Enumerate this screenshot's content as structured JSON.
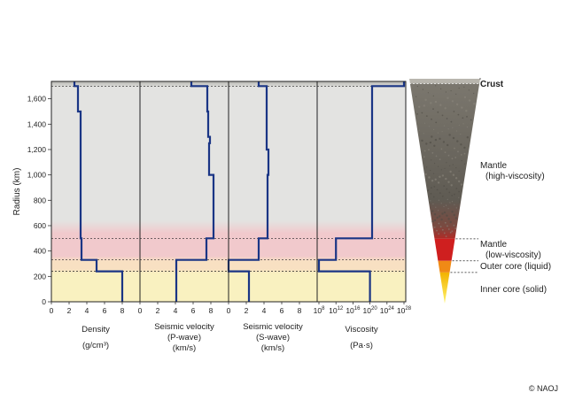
{
  "y_axis": {
    "label": "Radius (km)",
    "ticks": [
      "0",
      "200",
      "400",
      "600",
      "800",
      "1,000",
      "1,200",
      "1,400",
      "1,600"
    ]
  },
  "layers": [
    {
      "name": "crust",
      "label_lines": [
        "Crust"
      ],
      "r_bottom": 1700,
      "r_top": 1737,
      "color": "#b5b5b0"
    },
    {
      "name": "mantle-high",
      "label_lines": [
        "Mantle",
        "(high-viscosity)"
      ],
      "r_bottom": 500,
      "r_top": 1700,
      "color": "#e3e3e1"
    },
    {
      "name": "mantle-low",
      "label_lines": [
        "Mantle",
        "(low-viscosity)"
      ],
      "r_bottom": 330,
      "r_top": 500,
      "color": "#f1c9cc"
    },
    {
      "name": "outer-core",
      "label_lines": [
        "Outer core (liquid)"
      ],
      "r_bottom": 240,
      "r_top": 330,
      "color": "#f8e0c2"
    },
    {
      "name": "inner-core",
      "label_lines": [
        "Inner core (solid)"
      ],
      "r_bottom": 0,
      "r_top": 240,
      "color": "#f9f1c0"
    }
  ],
  "chart_data": [
    {
      "type": "line",
      "title_lines": [
        "Density",
        "(g/cm³)"
      ],
      "x_ticks": [
        "0",
        "2",
        "4",
        "6",
        "8"
      ],
      "xlim": [
        0,
        10
      ],
      "ylim": [
        0,
        1737
      ],
      "x": [
        8.0,
        8.0,
        5.1,
        5.1,
        3.4,
        3.4,
        3.3,
        3.3,
        3.0,
        3.0,
        2.6,
        2.6
      ],
      "y": [
        0,
        240,
        240,
        330,
        330,
        500,
        500,
        1500,
        1500,
        1700,
        1700,
        1737
      ]
    },
    {
      "type": "line",
      "title_lines": [
        "Seismic velocity",
        "(P-wave)",
        "(km/s)"
      ],
      "x_ticks": [
        "0",
        "2",
        "4",
        "6",
        "8"
      ],
      "xlim": [
        0,
        10
      ],
      "ylim": [
        0,
        1737
      ],
      "x": [
        4.1,
        4.1,
        4.1,
        4.1,
        7.5,
        7.5,
        8.3,
        8.3,
        7.8,
        7.8,
        7.9,
        7.9,
        7.7,
        7.7,
        7.6,
        7.6,
        5.8,
        5.8
      ],
      "y": [
        0,
        240,
        240,
        330,
        330,
        500,
        500,
        1000,
        1000,
        1250,
        1250,
        1300,
        1300,
        1500,
        1500,
        1700,
        1700,
        1737
      ]
    },
    {
      "type": "line",
      "title_lines": [
        "Seismic velocity",
        "(S-wave)",
        "(km/s)"
      ],
      "x_ticks": [
        "0",
        "2",
        "4",
        "6",
        "8"
      ],
      "xlim": [
        0,
        10
      ],
      "ylim": [
        0,
        1737
      ],
      "x": [
        2.3,
        2.3,
        0,
        0,
        3.4,
        3.4,
        4.4,
        4.4,
        4.5,
        4.5,
        4.3,
        4.3,
        3.4,
        3.4
      ],
      "y": [
        0,
        240,
        240,
        330,
        330,
        500,
        500,
        1000,
        1000,
        1200,
        1200,
        1700,
        1700,
        1737
      ]
    },
    {
      "type": "line",
      "title_lines": [
        "Viscosity",
        "(Pa·s)"
      ],
      "x_ticks": [
        {
          "base": "10",
          "exp": "8"
        },
        {
          "base": "10",
          "exp": "12"
        },
        {
          "base": "10",
          "exp": "16"
        },
        {
          "base": "10",
          "exp": "20"
        },
        {
          "base": "10",
          "exp": "24"
        },
        {
          "base": "10",
          "exp": "28"
        }
      ],
      "x_scale": "log",
      "x_log_min": 8,
      "x_log_max": 28,
      "ylim": [
        0,
        1737
      ],
      "x_log": [
        20,
        20,
        8,
        8,
        12,
        12,
        20.5,
        20.5,
        28,
        28
      ],
      "y": [
        0,
        240,
        240,
        330,
        330,
        500,
        500,
        1700,
        1700,
        1737
      ]
    }
  ],
  "line_color": "#1a3585",
  "copyright": "© NAOJ"
}
